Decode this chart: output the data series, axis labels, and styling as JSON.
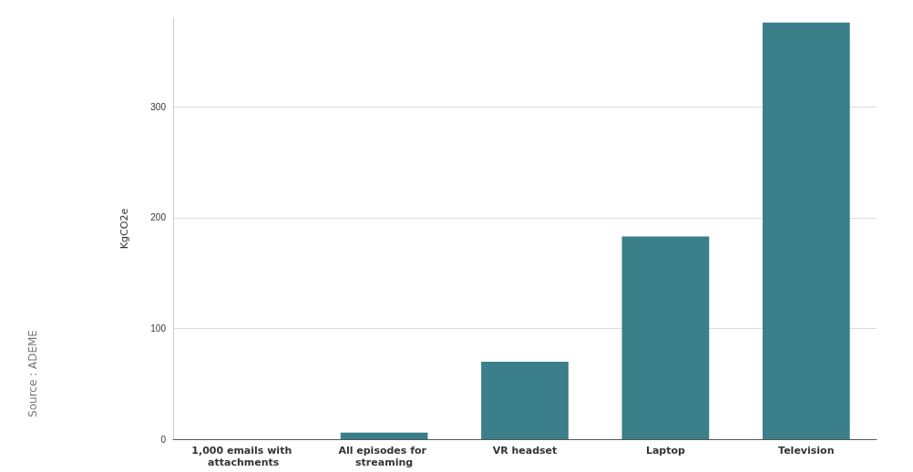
{
  "chart_data": {
    "type": "bar",
    "ylabel": "KgCO2e",
    "categories": [
      "1,000 emails with attachments",
      "All episodes for streaming",
      "VR headset",
      "Laptop",
      "Television"
    ],
    "values": [
      0,
      6,
      70,
      183,
      376
    ],
    "color": "#3a7f8a",
    "ylim": [
      0,
      380
    ],
    "yticks": [
      0,
      100,
      200,
      300
    ],
    "grid": "y",
    "annotations": [
      "Source : ADEME"
    ]
  }
}
